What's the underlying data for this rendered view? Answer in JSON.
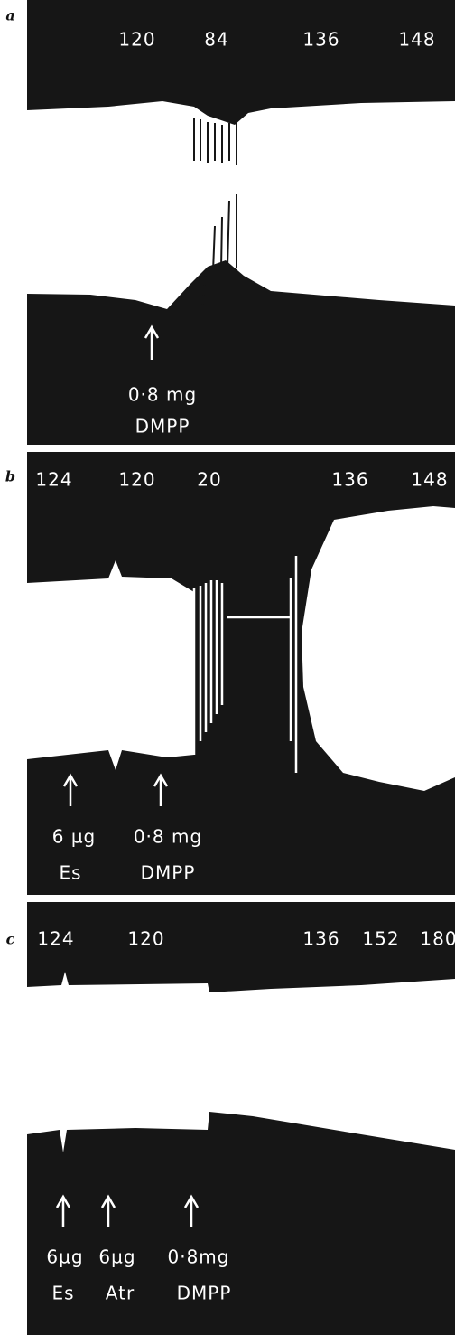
{
  "panels": [
    {
      "label": "a",
      "rates": [
        "120",
        "84",
        "136",
        "148"
      ],
      "arrows": [
        {
          "dose": "0·8 mg",
          "agent": "DMPP"
        }
      ]
    },
    {
      "label": "b",
      "rates": [
        "124",
        "120",
        "20",
        "136",
        "148"
      ],
      "arrows": [
        {
          "dose": "6 µg",
          "agent": "Es"
        },
        {
          "dose": "0·8 mg",
          "agent": "DMPP"
        }
      ]
    },
    {
      "label": "c",
      "rates": [
        "124",
        "120",
        "136",
        "152",
        "180"
      ],
      "arrows": [
        {
          "dose": "6µg",
          "agent": "Es"
        },
        {
          "dose": "6µg",
          "agent": "Atr"
        },
        {
          "dose": "0·8mg",
          "agent": "DMPP"
        }
      ]
    }
  ]
}
